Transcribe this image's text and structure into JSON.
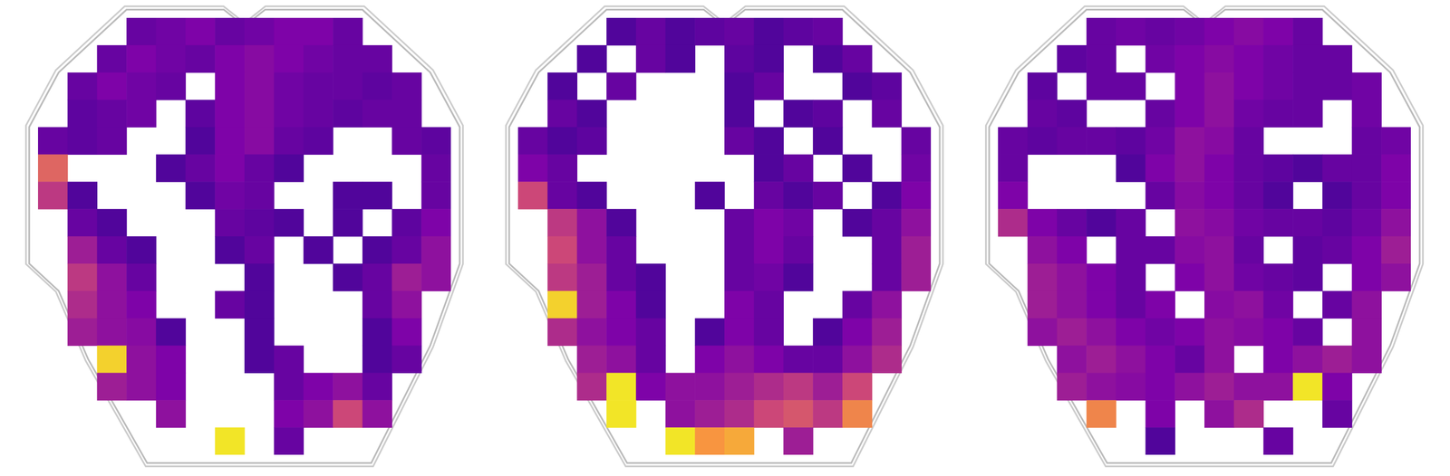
{
  "chart_data": [
    {
      "type": "heatmap",
      "color": "plasma",
      "color_range": [
        0,
        1
      ],
      "tick_labels": false,
      "xlim": [
        0,
        14
      ],
      "ylim": [
        0,
        16
      ],
      "cells": [
        [
          null,
          null,
          null,
          0.2,
          0.22,
          0.25,
          0.2,
          0.22,
          0.25,
          0.25,
          0.2,
          null,
          null,
          null
        ],
        [
          null,
          null,
          0.2,
          0.25,
          0.22,
          0.2,
          0.25,
          0.28,
          0.25,
          0.22,
          0.2,
          0.2,
          null,
          null
        ],
        [
          null,
          0.2,
          0.25,
          0.22,
          0.2,
          null,
          0.25,
          0.28,
          0.22,
          0.2,
          0.2,
          0.18,
          0.2,
          null
        ],
        [
          null,
          0.18,
          0.2,
          0.22,
          null,
          0.18,
          0.25,
          0.28,
          0.22,
          0.2,
          0.18,
          0.2,
          0.2,
          null
        ],
        [
          0.2,
          0.18,
          0.2,
          null,
          null,
          0.15,
          0.25,
          0.28,
          0.2,
          0.18,
          null,
          null,
          0.2,
          0.18
        ],
        [
          0.6,
          null,
          null,
          null,
          0.15,
          0.2,
          0.25,
          0.2,
          0.15,
          null,
          null,
          null,
          null,
          0.2
        ],
        [
          0.45,
          0.15,
          null,
          null,
          null,
          0.15,
          0.22,
          0.2,
          null,
          null,
          0.15,
          0.15,
          null,
          0.2
        ],
        [
          null,
          0.2,
          0.15,
          null,
          null,
          null,
          0.2,
          0.18,
          0.15,
          null,
          0.15,
          null,
          0.18,
          0.25
        ],
        [
          null,
          0.35,
          0.2,
          0.15,
          null,
          null,
          0.15,
          0.2,
          null,
          0.15,
          null,
          0.15,
          0.2,
          0.3
        ],
        [
          null,
          0.45,
          0.3,
          0.2,
          null,
          null,
          null,
          0.15,
          null,
          null,
          0.15,
          0.2,
          0.35,
          0.3
        ],
        [
          null,
          0.4,
          0.3,
          0.25,
          null,
          null,
          0.2,
          0.15,
          null,
          null,
          null,
          0.2,
          0.3,
          null
        ],
        [
          null,
          0.35,
          0.3,
          0.28,
          0.15,
          null,
          null,
          0.15,
          null,
          null,
          null,
          0.15,
          0.25,
          null
        ],
        [
          null,
          null,
          0.9,
          0.3,
          0.25,
          null,
          null,
          0.15,
          0.2,
          null,
          null,
          0.15,
          0.2,
          null
        ],
        [
          null,
          null,
          0.35,
          0.3,
          0.25,
          null,
          null,
          null,
          0.2,
          0.25,
          0.3,
          0.2,
          null,
          null
        ],
        [
          null,
          null,
          null,
          null,
          0.3,
          null,
          null,
          null,
          0.25,
          0.3,
          0.5,
          0.3,
          null,
          null
        ],
        [
          null,
          null,
          null,
          null,
          null,
          null,
          0.95,
          null,
          0.2,
          null,
          null,
          null,
          null,
          null
        ]
      ]
    },
    {
      "type": "heatmap",
      "color": "plasma",
      "color_range": [
        0,
        1
      ],
      "tick_labels": false,
      "xlim": [
        0,
        14
      ],
      "ylim": [
        0,
        16
      ],
      "cells": [
        [
          null,
          null,
          null,
          0.15,
          0.2,
          0.15,
          0.18,
          0.2,
          0.15,
          0.18,
          0.2,
          null,
          null,
          null
        ],
        [
          null,
          null,
          0.15,
          null,
          0.2,
          0.15,
          null,
          0.18,
          0.15,
          null,
          0.15,
          0.2,
          null,
          null
        ],
        [
          null,
          0.15,
          null,
          0.2,
          null,
          null,
          null,
          0.15,
          0.2,
          null,
          null,
          0.15,
          0.18,
          null
        ],
        [
          null,
          0.2,
          0.15,
          null,
          null,
          null,
          null,
          0.15,
          null,
          0.15,
          0.18,
          null,
          0.2,
          null
        ],
        [
          0.2,
          0.15,
          0.18,
          null,
          null,
          null,
          null,
          0.2,
          0.15,
          null,
          0.15,
          null,
          null,
          0.2
        ],
        [
          0.25,
          0.2,
          null,
          null,
          null,
          null,
          null,
          null,
          0.15,
          0.2,
          null,
          0.15,
          null,
          0.22
        ],
        [
          0.5,
          0.2,
          0.15,
          null,
          null,
          null,
          0.15,
          null,
          0.2,
          0.15,
          0.2,
          null,
          0.15,
          0.25
        ],
        [
          null,
          0.45,
          0.3,
          0.15,
          null,
          null,
          null,
          0.2,
          0.25,
          0.22,
          null,
          0.15,
          0.2,
          0.3
        ],
        [
          null,
          0.5,
          0.3,
          0.2,
          null,
          null,
          null,
          0.2,
          0.25,
          0.2,
          null,
          null,
          0.2,
          0.35
        ],
        [
          null,
          0.45,
          0.35,
          0.2,
          0.15,
          null,
          null,
          0.2,
          0.22,
          0.15,
          null,
          null,
          0.2,
          0.35
        ],
        [
          null,
          0.9,
          0.35,
          0.25,
          0.15,
          null,
          null,
          0.25,
          0.2,
          null,
          null,
          0.2,
          0.3,
          null
        ],
        [
          null,
          0.4,
          0.3,
          0.25,
          0.2,
          null,
          0.15,
          0.25,
          0.2,
          null,
          0.15,
          0.25,
          0.35,
          null
        ],
        [
          null,
          null,
          0.35,
          0.3,
          0.2,
          null,
          0.25,
          0.3,
          0.25,
          0.2,
          0.2,
          0.3,
          0.4,
          null
        ],
        [
          null,
          null,
          0.4,
          0.95,
          0.25,
          0.3,
          0.3,
          0.35,
          0.4,
          0.45,
          0.35,
          0.5,
          null,
          null
        ],
        [
          null,
          null,
          null,
          0.95,
          null,
          0.3,
          0.35,
          0.4,
          0.5,
          0.55,
          0.45,
          0.7,
          null,
          null
        ],
        [
          null,
          null,
          null,
          null,
          null,
          0.95,
          0.75,
          0.8,
          null,
          0.35,
          null,
          null,
          null,
          null
        ]
      ]
    },
    {
      "type": "heatmap",
      "color": "plasma",
      "color_range": [
        0,
        1
      ],
      "tick_labels": false,
      "xlim": [
        0,
        14
      ],
      "ylim": [
        0,
        16
      ],
      "cells": [
        [
          null,
          null,
          null,
          0.2,
          0.22,
          0.2,
          0.22,
          0.25,
          0.28,
          0.25,
          0.2,
          null,
          null,
          null
        ],
        [
          null,
          null,
          0.18,
          0.2,
          null,
          0.22,
          0.25,
          0.28,
          0.25,
          0.22,
          0.2,
          0.2,
          null,
          null
        ],
        [
          null,
          0.18,
          null,
          0.2,
          0.2,
          null,
          0.25,
          0.3,
          0.25,
          0.22,
          0.2,
          0.2,
          0.22,
          null
        ],
        [
          null,
          0.2,
          0.18,
          null,
          null,
          0.2,
          0.25,
          0.3,
          0.22,
          0.2,
          0.2,
          null,
          0.22,
          null
        ],
        [
          0.2,
          0.18,
          0.2,
          0.2,
          0.18,
          0.22,
          0.3,
          0.28,
          0.2,
          null,
          null,
          null,
          0.2,
          0.22
        ],
        [
          0.2,
          null,
          null,
          null,
          0.15,
          0.25,
          0.3,
          0.25,
          0.2,
          0.18,
          0.15,
          0.2,
          0.2,
          0.25
        ],
        [
          0.25,
          null,
          null,
          null,
          null,
          0.2,
          0.28,
          0.25,
          0.2,
          0.15,
          null,
          0.15,
          0.2,
          0.25
        ],
        [
          0.4,
          0.25,
          0.2,
          0.15,
          0.2,
          null,
          0.3,
          0.28,
          0.22,
          0.2,
          0.2,
          0.18,
          0.22,
          0.3
        ],
        [
          null,
          0.3,
          0.25,
          null,
          0.2,
          0.2,
          0.28,
          0.3,
          0.2,
          null,
          0.18,
          0.2,
          0.25,
          0.35
        ],
        [
          null,
          0.35,
          0.3,
          0.25,
          0.2,
          null,
          0.25,
          0.3,
          0.22,
          0.2,
          0.18,
          null,
          0.25,
          0.3
        ],
        [
          null,
          0.35,
          0.3,
          0.25,
          0.2,
          0.25,
          null,
          0.28,
          0.3,
          0.22,
          null,
          0.2,
          0.3,
          null
        ],
        [
          null,
          0.3,
          0.35,
          0.3,
          0.25,
          0.22,
          0.25,
          0.3,
          0.28,
          0.25,
          0.2,
          null,
          0.3,
          null
        ],
        [
          null,
          null,
          0.3,
          0.35,
          0.3,
          0.25,
          0.2,
          0.3,
          null,
          0.25,
          0.3,
          0.35,
          0.3,
          null
        ],
        [
          null,
          null,
          0.35,
          0.3,
          0.28,
          0.25,
          0.3,
          0.35,
          0.3,
          0.3,
          0.95,
          0.25,
          null,
          null
        ],
        [
          null,
          null,
          null,
          0.7,
          null,
          0.25,
          null,
          0.3,
          0.4,
          null,
          null,
          0.2,
          null,
          null
        ],
        [
          null,
          null,
          null,
          null,
          null,
          0.15,
          null,
          null,
          null,
          0.2,
          null,
          null,
          null,
          null
        ]
      ]
    }
  ]
}
